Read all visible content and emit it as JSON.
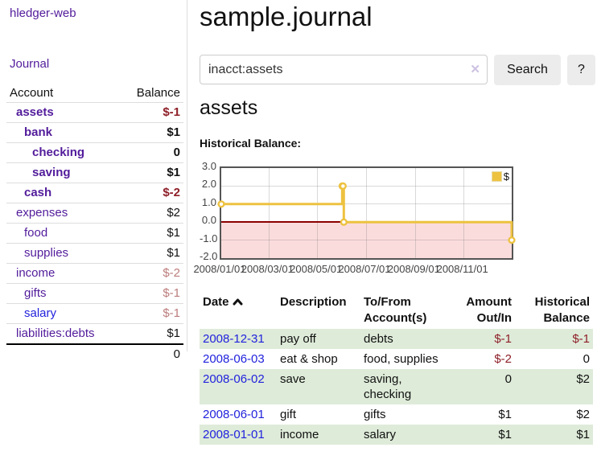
{
  "sidebar": {
    "app_title": "hledger-web",
    "journal_label": "Journal",
    "accounts_table": {
      "headers": {
        "account": "Account",
        "balance": "Balance"
      },
      "rows": [
        {
          "name": "assets",
          "depth": 1,
          "emph": true,
          "balance": "$-1",
          "tone": "neg"
        },
        {
          "name": "bank",
          "depth": 2,
          "emph": true,
          "balance": "$1",
          "tone": ""
        },
        {
          "name": "checking",
          "depth": 3,
          "emph": true,
          "balance": "0",
          "tone": ""
        },
        {
          "name": "saving",
          "depth": 3,
          "emph": true,
          "balance": "$1",
          "tone": ""
        },
        {
          "name": "cash",
          "depth": 2,
          "emph": true,
          "balance": "$-2",
          "tone": "neg"
        },
        {
          "name": "expenses",
          "depth": 1,
          "emph": false,
          "balance": "$2",
          "tone": ""
        },
        {
          "name": "food",
          "depth": 2,
          "emph": false,
          "balance": "$1",
          "tone": ""
        },
        {
          "name": "supplies",
          "depth": 2,
          "emph": false,
          "balance": "$1",
          "tone": ""
        },
        {
          "name": "income",
          "depth": 1,
          "emph": false,
          "balance": "$-2",
          "tone": "soft-neg"
        },
        {
          "name": "gifts",
          "depth": 2,
          "emph": false,
          "balance": "$-1",
          "tone": "soft-neg"
        },
        {
          "name": "salary",
          "depth": 2,
          "emph": false,
          "balance": "$-1",
          "tone": "soft-neg",
          "link_tone": "blue"
        },
        {
          "name": "liabilities:debts",
          "depth": 1,
          "emph": false,
          "balance": "$1",
          "tone": ""
        }
      ],
      "total": "0"
    }
  },
  "main": {
    "title": "sample.journal",
    "search": {
      "value": "inacct:assets",
      "clear_icon": "✕",
      "button_label": "Search",
      "help_label": "?"
    },
    "account_heading": "assets",
    "chart_label": "Historical Balance:"
  },
  "chart_data": {
    "type": "line",
    "step": true,
    "title": "Historical Balance:",
    "series": [
      {
        "name": "$",
        "color": "#edc240",
        "points": [
          [
            "2008-01-01",
            1.0
          ],
          [
            "2008-06-01",
            2.0
          ],
          [
            "2008-06-02",
            2.0
          ],
          [
            "2008-06-03",
            0.0
          ],
          [
            "2008-12-31",
            -1.0
          ]
        ]
      }
    ],
    "xlim": [
      "2008-01-01",
      "2008-12-31"
    ],
    "ylim": [
      -2.0,
      3.0
    ],
    "yticks": [
      3.0,
      2.0,
      1.0,
      0.0,
      -1.0,
      -2.0
    ],
    "ytick_labels": [
      "3.0",
      "2.0",
      "1.0",
      "0.0",
      "-1.0",
      "-2.0"
    ],
    "xticks": [
      "2008-01-01",
      "2008-03-01",
      "2008-05-01",
      "2008-07-01",
      "2008-09-01",
      "2008-11-01"
    ],
    "xtick_labels": [
      "2008/01/01",
      "2008/03/01",
      "2008/05/01",
      "2008/07/01",
      "2008/09/01",
      "2008/11/01"
    ],
    "legend": {
      "label": "$",
      "position": "top-right"
    },
    "grid": true,
    "negative_region_color": "#fbdcdc",
    "zero_line_color": "#8b0000"
  },
  "transactions": {
    "headers": {
      "date": "Date",
      "description": "Description",
      "accounts": "To/From Account(s)",
      "amount": "Amount Out/In",
      "balance": "Historical Balance"
    },
    "sort": {
      "column": "date",
      "direction": "ascending"
    },
    "rows": [
      {
        "date": "2008-12-31",
        "description": "pay off",
        "accounts": "debts",
        "amount": "$-1",
        "amount_tone": "neg",
        "balance": "$-1",
        "balance_tone": "neg"
      },
      {
        "date": "2008-06-03",
        "description": "eat & shop",
        "accounts": "food, supplies",
        "amount": "$-2",
        "amount_tone": "neg",
        "balance": "0",
        "balance_tone": ""
      },
      {
        "date": "2008-06-02",
        "description": "save",
        "accounts": "saving, checking",
        "amount": "0",
        "amount_tone": "",
        "balance": "$2",
        "balance_tone": ""
      },
      {
        "date": "2008-06-01",
        "description": "gift",
        "accounts": "gifts",
        "amount": "$1",
        "amount_tone": "",
        "balance": "$2",
        "balance_tone": ""
      },
      {
        "date": "2008-01-01",
        "description": "income",
        "accounts": "salary",
        "amount": "$1",
        "amount_tone": "",
        "balance": "$1",
        "balance_tone": ""
      }
    ]
  },
  "colors": {
    "link_purple": "#521c9b",
    "link_blue": "#2222dd",
    "negative_strong": "#8e1f28",
    "negative_soft": "#bc7c7c",
    "row_stripe_green": "#deebd9",
    "chart_gold": "#edc240",
    "chart_negative_pink": "#fbdcdc",
    "chart_zero_line": "#8b0000"
  }
}
